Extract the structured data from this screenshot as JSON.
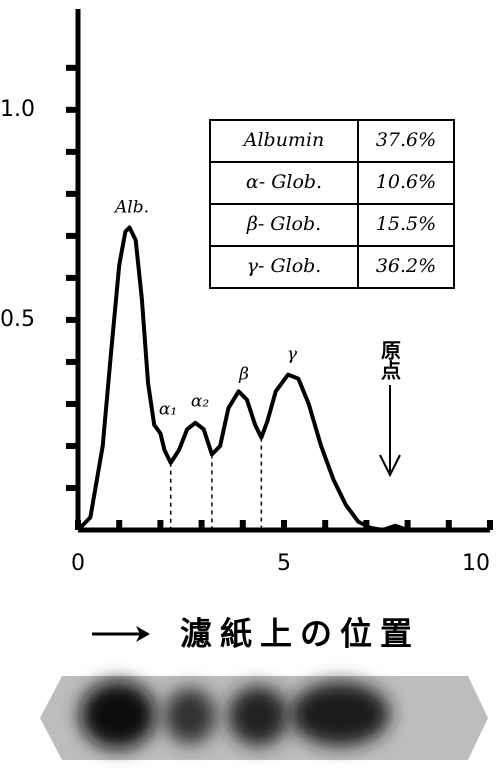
{
  "chart_data": {
    "type": "line",
    "xlabel": "濾紙上の位置",
    "origin_label": "原点",
    "x": [
      0,
      0.3,
      0.6,
      0.8,
      1.0,
      1.15,
      1.25,
      1.4,
      1.55,
      1.7,
      1.85,
      2.0,
      2.1,
      2.25,
      2.45,
      2.65,
      2.85,
      3.05,
      3.25,
      3.45,
      3.65,
      3.9,
      4.1,
      4.3,
      4.45,
      4.6,
      4.8,
      5.1,
      5.35,
      5.6,
      5.9,
      6.2,
      6.5,
      6.8,
      7.1,
      7.4,
      7.7,
      8.0
    ],
    "series": [
      {
        "color": "#000000",
        "values": [
          0,
          0.03,
          0.2,
          0.42,
          0.63,
          0.71,
          0.72,
          0.69,
          0.55,
          0.35,
          0.25,
          0.23,
          0.19,
          0.16,
          0.19,
          0.24,
          0.255,
          0.24,
          0.18,
          0.2,
          0.29,
          0.33,
          0.31,
          0.25,
          0.22,
          0.26,
          0.33,
          0.37,
          0.36,
          0.3,
          0.2,
          0.12,
          0.06,
          0.02,
          0.005,
          0,
          0.01,
          0
        ]
      }
    ],
    "dividers": [
      2.25,
      3.25,
      4.45
    ],
    "peak_labels": [
      "Alb.",
      "α₁",
      "α₂",
      "β",
      "γ"
    ],
    "xlim": [
      0,
      10
    ],
    "ylim": [
      0,
      1.24
    ],
    "xticks": [
      0,
      5,
      10
    ],
    "xminor_ticks": [
      1,
      2,
      3,
      4,
      6,
      7,
      8,
      9
    ],
    "yticks": [
      0.5,
      {
        "value": 1,
        "label": "1.0"
      }
    ],
    "yminor_ticks": [
      0.1,
      0.2,
      0.3,
      0.4,
      0.6,
      0.7,
      0.8,
      0.9,
      1.1
    ],
    "table": [
      [
        "Albumin",
        "37.6%"
      ],
      [
        "α- Glob.",
        "10.6%"
      ],
      [
        "β- Glob.",
        "15.5%"
      ],
      [
        "γ- Glob.",
        "36.2%"
      ]
    ]
  }
}
